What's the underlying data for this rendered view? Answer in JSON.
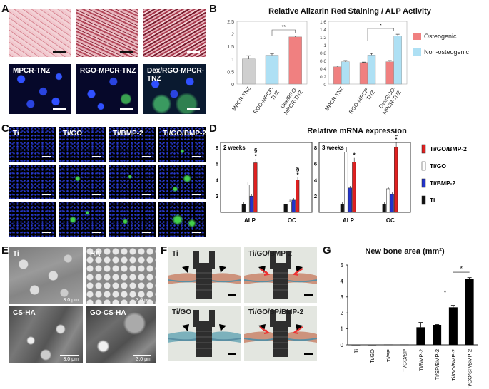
{
  "panels": {
    "A": "A",
    "B": "B",
    "C": "C",
    "D": "D",
    "E": "E",
    "F": "F",
    "G": "G"
  },
  "panelA": {
    "labels": [
      "MPCR-TNZ",
      "RGO-MPCR-TNZ",
      "Dex/RGO-MPCR-TNZ"
    ]
  },
  "panelC": {
    "labels": [
      "Ti",
      "Ti/GO",
      "Ti/BMP-2",
      "Ti/GO/BMP-2"
    ]
  },
  "panelE": {
    "labels": [
      "Ti",
      "HA",
      "CS-HA",
      "GO-CS-HA"
    ],
    "scale": "3.0 μm"
  },
  "panelF": {
    "labels": [
      "Ti",
      "Ti/GO/BMP-2",
      "Ti/GO",
      "Ti/GO/SP/BMP-2"
    ]
  },
  "colors": {
    "osteogenic": "#f08080",
    "non_osteogenic": "#aee0f4",
    "gray_bar": "#cfcfcf",
    "tigobmp2": "#e02020",
    "tigo": "#ffffff",
    "tibmp2": "#2233cc",
    "ti": "#111111"
  },
  "chart_data": [
    {
      "id": "B-left",
      "type": "bar",
      "title": "Relative Alizarin Red Staining / ALP Activity",
      "categories": [
        "MPCR-TNZ",
        "RGO-MPCR-TNZ",
        "Dex/RGO-MPCR-TNZ"
      ],
      "values": [
        1.0,
        1.15,
        1.88
      ],
      "errors": [
        0.13,
        0.07,
        0.04
      ],
      "bar_colors": [
        "#cfcfcf",
        "#aee0f4",
        "#f08080"
      ],
      "ylim": [
        0,
        2.5
      ],
      "yticks": [
        "0",
        "0.5",
        "1",
        "1.5",
        "2",
        "2.5"
      ],
      "annotation": "**"
    },
    {
      "id": "B-right",
      "type": "bar",
      "categories": [
        "MPCR-TNZ",
        "RGO-MPCR-TNZ",
        "Dex/RGO-MPCR-TNZ"
      ],
      "series": [
        {
          "name": "Osteogenic",
          "values": [
            0.44,
            0.55,
            0.57
          ],
          "errors": [
            0.02,
            0.01,
            0.03
          ]
        },
        {
          "name": "Non-osteogenic",
          "values": [
            0.57,
            0.74,
            1.23
          ],
          "errors": [
            0.03,
            0.04,
            0.04
          ]
        }
      ],
      "ylim": [
        0,
        1.6
      ],
      "yticks": [
        "0",
        "0.2",
        "0.4",
        "0.6",
        "0.8",
        "1",
        "1.2",
        "1.4",
        "1.6"
      ],
      "annotation": "*",
      "legend": [
        "Osteogenic",
        "Non-osteogenic"
      ]
    },
    {
      "id": "D",
      "type": "bar",
      "title": "Relative mRNA expression",
      "subplots": [
        {
          "label": "2 weeks",
          "groups": [
            "ALP",
            "OC"
          ],
          "series": [
            {
              "name": "Ti",
              "values": [
                1.0,
                1.0
              ]
            },
            {
              "name": "Ti/BMP-2",
              "values": [
                2.0,
                1.5
              ]
            },
            {
              "name": "Ti/GO",
              "values": [
                3.4,
                1.3
              ]
            },
            {
              "name": "Ti/GO/BMP-2",
              "values": [
                6.1,
                4.0
              ]
            }
          ]
        },
        {
          "label": "3 weeks",
          "groups": [
            "ALP",
            "OC"
          ],
          "series": [
            {
              "name": "Ti",
              "values": [
                1.0,
                1.0
              ]
            },
            {
              "name": "Ti/BMP-2",
              "values": [
                3.0,
                2.2
              ]
            },
            {
              "name": "Ti/GO",
              "values": [
                7.4,
                2.9
              ]
            },
            {
              "name": "Ti/GO/BMP-2",
              "values": [
                6.2,
                8.0
              ]
            }
          ]
        }
      ],
      "ylim": [
        0,
        8
      ],
      "yticks": [
        "2",
        "4",
        "6",
        "8"
      ],
      "legend": [
        "Ti/GO/BMP-2",
        "Ti/GO",
        "Ti/BMP-2",
        "Ti"
      ],
      "markers": [
        "§",
        "*"
      ]
    },
    {
      "id": "G",
      "type": "bar",
      "title": "New bone area (mm²)",
      "categories": [
        "Ti",
        "Ti/GO",
        "Ti/SP",
        "Ti/GO/SP",
        "Ti/BMP-2",
        "Ti/SP/BMP-2",
        "Ti/GO/BMP-2",
        "Ti/GO/SP/BMP-2"
      ],
      "values": [
        0,
        0,
        0.02,
        0.02,
        1.1,
        1.25,
        2.35,
        4.15
      ],
      "errors": [
        0,
        0,
        0,
        0,
        0.3,
        0.02,
        0.12,
        0.06
      ],
      "ylim": [
        0,
        5
      ],
      "yticks": [
        "0",
        "1",
        "2",
        "3",
        "4",
        "5"
      ],
      "annotation": "*"
    }
  ]
}
